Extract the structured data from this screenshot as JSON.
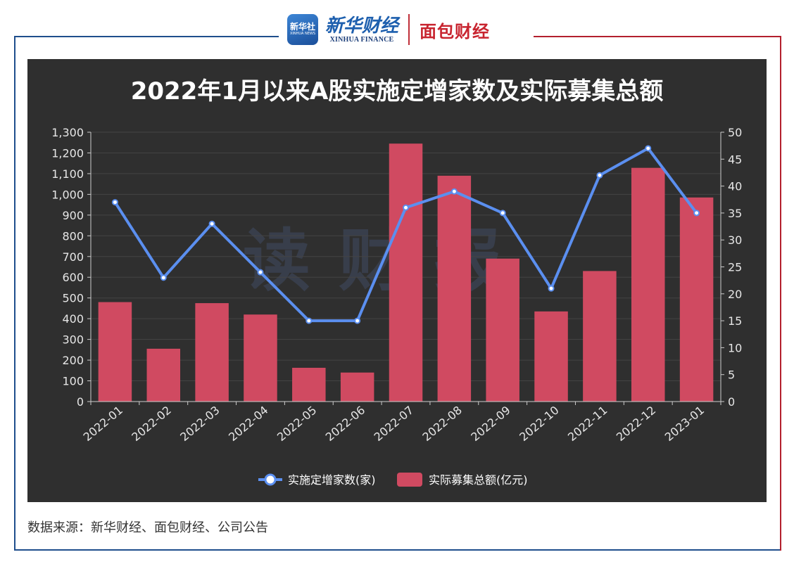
{
  "header": {
    "badge_text": "新华社",
    "badge_sub": "XINHUA NEWS",
    "brand_cn": "新华财经",
    "brand_en": "XINHUA FINANCE",
    "brand2": "面包财经"
  },
  "colors": {
    "chart_bg": "#2f2f2f",
    "bar": "#d04a61",
    "line": "#5b8ff0",
    "frame_blue": "#1f4e8c",
    "frame_red": "#b3202e"
  },
  "watermark": "读财报",
  "source": "数据来源：新华财经、面包财经、公司公告",
  "chart_data": {
    "type": "bar",
    "title": "2022年1月以来A股实施定增家数及实际募集总额",
    "categories": [
      "2022-01",
      "2022-02",
      "2022-03",
      "2022-04",
      "2022-05",
      "2022-06",
      "2022-07",
      "2022-08",
      "2022-09",
      "2022-10",
      "2022-11",
      "2022-12",
      "2023-01"
    ],
    "series": [
      {
        "name": "实施定增家数(家)",
        "type": "line",
        "axis": "right",
        "values": [
          37,
          23,
          33,
          24,
          15,
          15,
          36,
          39,
          35,
          21,
          42,
          47,
          35
        ]
      },
      {
        "name": "实际募集总额(亿元)",
        "type": "bar",
        "axis": "left",
        "values": [
          480,
          255,
          475,
          420,
          163,
          140,
          1245,
          1090,
          690,
          435,
          630,
          1128,
          985
        ]
      }
    ],
    "ylim_left": [
      0,
      1300
    ],
    "yticks_left": [
      "0",
      "100",
      "200",
      "300",
      "400",
      "500",
      "600",
      "700",
      "800",
      "900",
      "1,000",
      "1,100",
      "1,200",
      "1,300"
    ],
    "ylim_right": [
      0,
      50
    ],
    "yticks_right": [
      "0",
      "5",
      "10",
      "15",
      "20",
      "25",
      "30",
      "35",
      "40",
      "45",
      "50"
    ],
    "grid": true,
    "legend_position": "bottom"
  }
}
